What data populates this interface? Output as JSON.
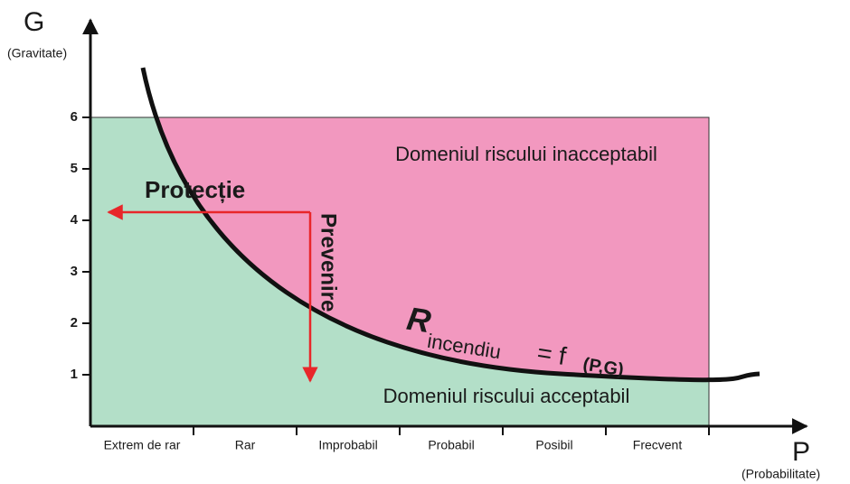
{
  "axes": {
    "y": {
      "symbol": "G",
      "name": "(Gravitate)",
      "ticks": [
        1,
        2,
        3,
        4,
        5,
        6
      ]
    },
    "x": {
      "symbol": "P",
      "name": "(Probabilitate)",
      "categories": [
        "Extrem de rar",
        "Rar",
        "Improbabil",
        "Probabil",
        "Posibil",
        "Frecvent"
      ]
    }
  },
  "regions": {
    "upper": "Domeniul riscului inacceptabil",
    "lower": "Domeniul riscului acceptabil"
  },
  "arrows": {
    "horizontal": "Protecție",
    "vertical": "Prevenire"
  },
  "curve": {
    "symbol": "R",
    "subscript": "incendiu",
    "formula": "= f",
    "args": "(P,G)"
  }
}
